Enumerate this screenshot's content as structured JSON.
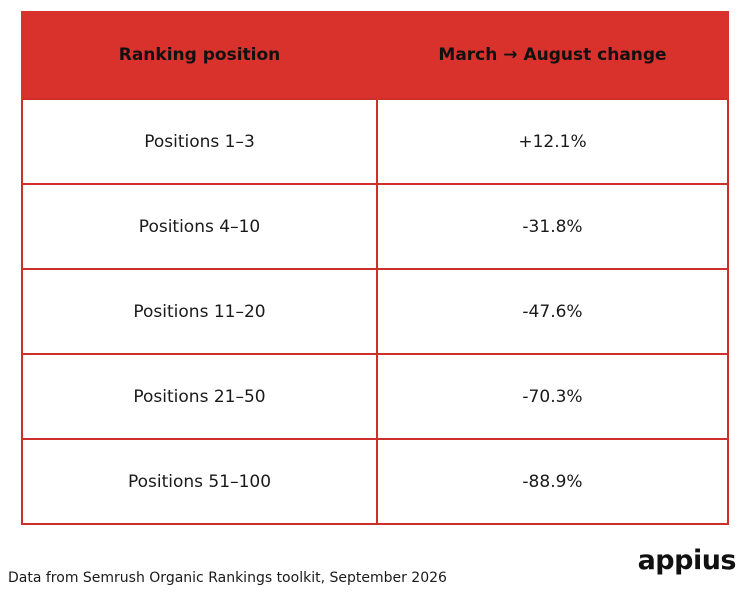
{
  "chart_data": {
    "type": "table",
    "columns": [
      "Ranking position",
      "March → August change"
    ],
    "rows": [
      [
        "Positions 1–3",
        "+12.1%"
      ],
      [
        "Positions 4–10",
        "-31.8%"
      ],
      [
        "Positions 11–20",
        "-47.6%"
      ],
      [
        "Positions 21–50",
        "-70.3%"
      ],
      [
        "Positions 51–100",
        "-88.9%"
      ]
    ]
  },
  "footer": {
    "source_note": "Data from Semrush Organic Rankings toolkit, September 2026",
    "brand": "appius"
  },
  "colors": {
    "header_fill": "#d9312b",
    "border": "#cf2f2a"
  }
}
